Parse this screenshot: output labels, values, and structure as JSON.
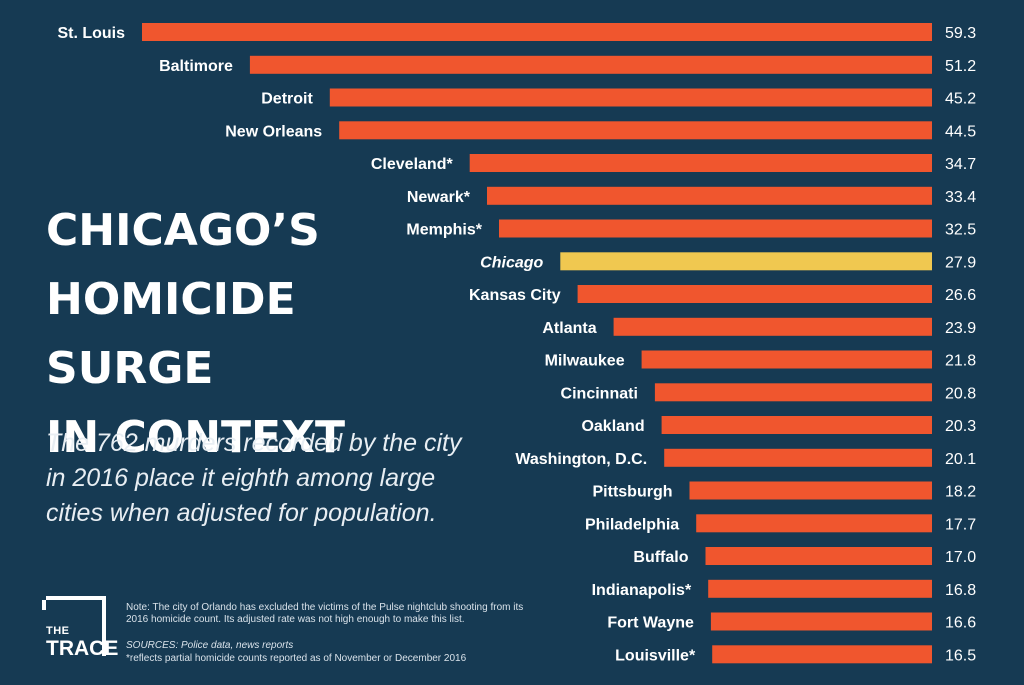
{
  "title": "CHICAGO’S\nHOMICIDE SURGE\nIN CONTEXT",
  "subtitle": "The 762 murders recorded by the city in 2016 place it eighth among large cities when adjusted for population.",
  "logo": {
    "line1": "THE",
    "line2": "TRACE"
  },
  "note": "Note: The city of Orlando has excluded the victims of the Pulse nightclub shooting from its 2016 homicide count. Its adjusted rate was not high enough to make this list.",
  "sources": "SOURCES: Police data, news reports",
  "footnote": "*reflects partial homicide counts reported as of November or December 2016",
  "colors": {
    "background": "#163a53",
    "bar": "#f0562e",
    "highlight": "#f0c850",
    "text": "#ffffff"
  },
  "chart_data": {
    "type": "bar",
    "orientation": "horizontal",
    "highlight": "Chicago",
    "categories": [
      "St. Louis",
      "Baltimore",
      "Detroit",
      "New Orleans",
      "Cleveland*",
      "Newark*",
      "Memphis*",
      "Chicago",
      "Kansas City",
      "Atlanta",
      "Milwaukee",
      "Cincinnati",
      "Oakland",
      "Washington, D.C.",
      "Pittsburgh",
      "Philadelphia",
      "Buffalo",
      "Indianapolis*",
      "Fort Wayne",
      "Louisville*"
    ],
    "values": [
      59.3,
      51.2,
      45.2,
      44.5,
      34.7,
      33.4,
      32.5,
      27.9,
      26.6,
      23.9,
      21.8,
      20.8,
      20.3,
      20.1,
      18.2,
      17.7,
      17.0,
      16.8,
      16.6,
      16.5
    ],
    "value_labels": [
      "59.3",
      "51.2",
      "45.2",
      "44.5",
      "34.7",
      "33.4",
      "32.5",
      "27.9",
      "26.6",
      "23.9",
      "21.8",
      "20.8",
      "20.3",
      "20.1",
      "18.2",
      "17.7",
      "17.0",
      "16.8",
      "16.6",
      "16.5"
    ],
    "xlim": [
      0,
      59.3
    ]
  }
}
